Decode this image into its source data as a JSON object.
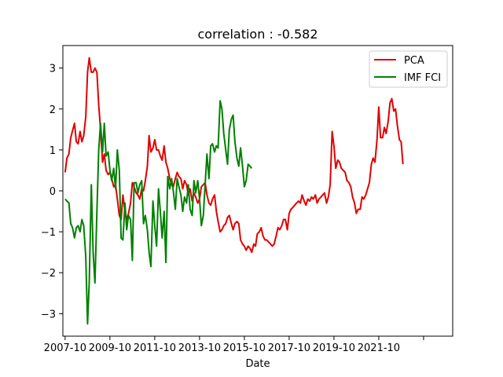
{
  "chart_data": {
    "type": "line",
    "title": "correlation : -0.582",
    "xlabel": "Date",
    "ylabel": "",
    "xlim": [
      2007.65,
      2025.05
    ],
    "ylim": [
      -3.55,
      3.55
    ],
    "grid": false,
    "legend_position": "top-right",
    "x_ticks": [
      {
        "x": 2007.75,
        "label": "2007-10"
      },
      {
        "x": 2009.75,
        "label": "2009-10"
      },
      {
        "x": 2011.75,
        "label": "2011-10"
      },
      {
        "x": 2013.75,
        "label": "2013-10"
      },
      {
        "x": 2015.75,
        "label": "2015-10"
      },
      {
        "x": 2017.75,
        "label": "2017-10"
      },
      {
        "x": 2019.75,
        "label": "2019-10"
      },
      {
        "x": 2021.75,
        "label": "2021-10"
      },
      {
        "x": 2023.75,
        "label": ""
      }
    ],
    "y_ticks": [
      -3,
      -2,
      -1,
      0,
      1,
      2,
      3
    ],
    "series": [
      {
        "name": "PCA",
        "color": "#e00000",
        "points": [
          [
            2007.75,
            0.45
          ],
          [
            2007.83,
            0.8
          ],
          [
            2007.92,
            0.9
          ],
          [
            2008.0,
            1.3
          ],
          [
            2008.17,
            1.65
          ],
          [
            2008.25,
            1.2
          ],
          [
            2008.33,
            1.15
          ],
          [
            2008.42,
            1.45
          ],
          [
            2008.5,
            1.2
          ],
          [
            2008.58,
            1.35
          ],
          [
            2008.67,
            1.8
          ],
          [
            2008.75,
            2.9
          ],
          [
            2008.83,
            3.25
          ],
          [
            2008.92,
            2.9
          ],
          [
            2009.0,
            2.9
          ],
          [
            2009.08,
            3.0
          ],
          [
            2009.17,
            2.9
          ],
          [
            2009.25,
            2.1
          ],
          [
            2009.33,
            1.5
          ],
          [
            2009.42,
            0.7
          ],
          [
            2009.5,
            0.9
          ],
          [
            2009.58,
            0.5
          ],
          [
            2009.67,
            0.4
          ],
          [
            2009.75,
            0.45
          ],
          [
            2009.83,
            0.3
          ],
          [
            2009.92,
            0.1
          ],
          [
            2010.0,
            0.15
          ],
          [
            2010.08,
            -0.2
          ],
          [
            2010.17,
            -0.6
          ],
          [
            2010.25,
            -0.7
          ],
          [
            2010.33,
            -0.1
          ],
          [
            2010.42,
            -0.5
          ],
          [
            2010.5,
            -0.7
          ],
          [
            2010.58,
            -0.55
          ],
          [
            2010.67,
            -0.3
          ],
          [
            2010.75,
            0.2
          ],
          [
            2010.83,
            0.1
          ],
          [
            2010.92,
            -0.05
          ],
          [
            2011.0,
            -0.1
          ],
          [
            2011.08,
            -0.2
          ],
          [
            2011.17,
            0.05
          ],
          [
            2011.25,
            0.0
          ],
          [
            2011.33,
            0.25
          ],
          [
            2011.42,
            0.6
          ],
          [
            2011.5,
            1.35
          ],
          [
            2011.58,
            0.95
          ],
          [
            2011.67,
            1.05
          ],
          [
            2011.75,
            1.25
          ],
          [
            2011.83,
            1.0
          ],
          [
            2011.92,
            1.0
          ],
          [
            2012.0,
            0.85
          ],
          [
            2012.08,
            0.75
          ],
          [
            2012.17,
            1.1
          ],
          [
            2012.25,
            0.7
          ],
          [
            2012.33,
            0.55
          ],
          [
            2012.42,
            0.3
          ],
          [
            2012.5,
            0.15
          ],
          [
            2012.58,
            0.1
          ],
          [
            2012.67,
            0.3
          ],
          [
            2012.75,
            0.45
          ],
          [
            2012.83,
            0.35
          ],
          [
            2012.92,
            0.3
          ],
          [
            2013.0,
            0.05
          ],
          [
            2013.08,
            0.25
          ],
          [
            2013.17,
            0.15
          ],
          [
            2013.25,
            -0.1
          ],
          [
            2013.33,
            0.05
          ],
          [
            2013.42,
            -0.25
          ],
          [
            2013.5,
            -0.05
          ],
          [
            2013.58,
            -0.15
          ],
          [
            2013.67,
            -0.3
          ],
          [
            2013.75,
            -0.2
          ],
          [
            2013.83,
            0.1
          ],
          [
            2013.92,
            0.15
          ],
          [
            2014.0,
            0.2
          ],
          [
            2014.08,
            -0.1
          ],
          [
            2014.17,
            -0.3
          ],
          [
            2014.25,
            -0.35
          ],
          [
            2014.33,
            -0.2
          ],
          [
            2014.42,
            -0.1
          ],
          [
            2014.5,
            -0.5
          ],
          [
            2014.58,
            -0.75
          ],
          [
            2014.67,
            -1.0
          ],
          [
            2014.75,
            -0.95
          ],
          [
            2014.83,
            -0.85
          ],
          [
            2014.92,
            -0.8
          ],
          [
            2015.0,
            -0.65
          ],
          [
            2015.08,
            -0.6
          ],
          [
            2015.17,
            -0.8
          ],
          [
            2015.25,
            -0.95
          ],
          [
            2015.33,
            -0.8
          ],
          [
            2015.42,
            -0.75
          ],
          [
            2015.5,
            -0.8
          ],
          [
            2015.58,
            -1.2
          ],
          [
            2015.67,
            -1.3
          ],
          [
            2015.75,
            -1.35
          ],
          [
            2015.83,
            -1.45
          ],
          [
            2015.92,
            -1.35
          ],
          [
            2016.0,
            -1.4
          ],
          [
            2016.08,
            -1.5
          ],
          [
            2016.17,
            -1.3
          ],
          [
            2016.25,
            -1.35
          ],
          [
            2016.33,
            -1.05
          ],
          [
            2016.42,
            -1.0
          ],
          [
            2016.5,
            -0.9
          ],
          [
            2016.58,
            -1.1
          ],
          [
            2016.67,
            -1.2
          ],
          [
            2016.75,
            -1.2
          ],
          [
            2016.83,
            -1.25
          ],
          [
            2016.92,
            -1.3
          ],
          [
            2017.0,
            -1.35
          ],
          [
            2017.08,
            -1.3
          ],
          [
            2017.17,
            -1.1
          ],
          [
            2017.25,
            -0.9
          ],
          [
            2017.33,
            -0.95
          ],
          [
            2017.42,
            -0.85
          ],
          [
            2017.5,
            -0.7
          ],
          [
            2017.58,
            -0.7
          ],
          [
            2017.67,
            -0.95
          ],
          [
            2017.75,
            -0.55
          ],
          [
            2017.83,
            -0.45
          ],
          [
            2017.92,
            -0.4
          ],
          [
            2018.0,
            -0.35
          ],
          [
            2018.08,
            -0.3
          ],
          [
            2018.17,
            -0.25
          ],
          [
            2018.25,
            -0.3
          ],
          [
            2018.33,
            -0.1
          ],
          [
            2018.42,
            -0.25
          ],
          [
            2018.5,
            -0.35
          ],
          [
            2018.58,
            -0.2
          ],
          [
            2018.67,
            -0.25
          ],
          [
            2018.75,
            -0.15
          ],
          [
            2018.83,
            -0.2
          ],
          [
            2018.92,
            -0.1
          ],
          [
            2019.0,
            -0.3
          ],
          [
            2019.08,
            -0.2
          ],
          [
            2019.17,
            -0.15
          ],
          [
            2019.25,
            -0.1
          ],
          [
            2019.33,
            -0.05
          ],
          [
            2019.42,
            -0.3
          ],
          [
            2019.5,
            -0.15
          ],
          [
            2019.58,
            0.15
          ],
          [
            2019.67,
            1.45
          ],
          [
            2019.75,
            1.1
          ],
          [
            2019.83,
            0.55
          ],
          [
            2019.92,
            0.75
          ],
          [
            2020.0,
            0.7
          ],
          [
            2020.08,
            0.55
          ],
          [
            2020.17,
            0.5
          ],
          [
            2020.25,
            0.45
          ],
          [
            2020.33,
            0.25
          ],
          [
            2020.42,
            0.2
          ],
          [
            2020.5,
            0.1
          ],
          [
            2020.58,
            -0.15
          ],
          [
            2020.67,
            -0.3
          ],
          [
            2020.75,
            -0.55
          ],
          [
            2020.83,
            -0.45
          ],
          [
            2020.92,
            -0.45
          ],
          [
            2021.0,
            -0.15
          ],
          [
            2021.08,
            -0.2
          ],
          [
            2021.17,
            -0.1
          ],
          [
            2021.25,
            0.05
          ],
          [
            2021.33,
            0.2
          ],
          [
            2021.42,
            0.65
          ],
          [
            2021.5,
            0.8
          ],
          [
            2021.58,
            0.7
          ],
          [
            2021.67,
            1.25
          ],
          [
            2021.75,
            2.05
          ],
          [
            2021.83,
            1.3
          ],
          [
            2021.92,
            1.3
          ],
          [
            2022.0,
            1.55
          ],
          [
            2022.08,
            1.4
          ],
          [
            2022.17,
            1.7
          ],
          [
            2022.25,
            2.15
          ],
          [
            2022.33,
            2.25
          ],
          [
            2022.42,
            1.95
          ],
          [
            2022.5,
            2.0
          ],
          [
            2022.58,
            1.6
          ],
          [
            2022.67,
            1.25
          ],
          [
            2022.75,
            1.2
          ],
          [
            2022.83,
            0.65
          ]
        ]
      },
      {
        "name": "IMF FCI",
        "color": "#008000",
        "points": [
          [
            2007.75,
            -0.2
          ],
          [
            2007.83,
            -0.25
          ],
          [
            2007.92,
            -0.3
          ],
          [
            2008.0,
            -0.8
          ],
          [
            2008.08,
            -0.9
          ],
          [
            2008.17,
            -1.15
          ],
          [
            2008.25,
            -0.9
          ],
          [
            2008.33,
            -0.85
          ],
          [
            2008.42,
            -1.0
          ],
          [
            2008.5,
            -0.7
          ],
          [
            2008.58,
            -0.85
          ],
          [
            2008.67,
            -1.6
          ],
          [
            2008.75,
            -3.25
          ],
          [
            2008.83,
            -2.2
          ],
          [
            2008.92,
            0.15
          ],
          [
            2009.0,
            -1.5
          ],
          [
            2009.08,
            -2.25
          ],
          [
            2009.17,
            -0.5
          ],
          [
            2009.25,
            1.0
          ],
          [
            2009.33,
            1.65
          ],
          [
            2009.42,
            0.95
          ],
          [
            2009.5,
            1.65
          ],
          [
            2009.58,
            0.85
          ],
          [
            2009.67,
            0.95
          ],
          [
            2009.75,
            0.5
          ],
          [
            2009.83,
            0.25
          ],
          [
            2009.92,
            0.55
          ],
          [
            2010.0,
            0.05
          ],
          [
            2010.08,
            1.0
          ],
          [
            2010.17,
            0.5
          ],
          [
            2010.25,
            -1.15
          ],
          [
            2010.33,
            -1.2
          ],
          [
            2010.42,
            -0.3
          ],
          [
            2010.5,
            -0.95
          ],
          [
            2010.58,
            -0.6
          ],
          [
            2010.67,
            -0.7
          ],
          [
            2010.75,
            -1.7
          ],
          [
            2010.83,
            0.2
          ],
          [
            2010.92,
            0.2
          ],
          [
            2011.0,
            -0.05
          ],
          [
            2011.08,
            0.15
          ],
          [
            2011.17,
            0.25
          ],
          [
            2011.25,
            -0.8
          ],
          [
            2011.33,
            -0.6
          ],
          [
            2011.42,
            -0.95
          ],
          [
            2011.5,
            -1.5
          ],
          [
            2011.58,
            -1.85
          ],
          [
            2011.67,
            -0.25
          ],
          [
            2011.75,
            -0.85
          ],
          [
            2011.83,
            -1.35
          ],
          [
            2011.92,
            0.05
          ],
          [
            2012.0,
            -0.5
          ],
          [
            2012.08,
            -1.15
          ],
          [
            2012.17,
            -0.5
          ],
          [
            2012.25,
            -1.75
          ],
          [
            2012.33,
            0.35
          ],
          [
            2012.42,
            0.05
          ],
          [
            2012.5,
            0.3
          ],
          [
            2012.58,
            0.0
          ],
          [
            2012.67,
            -0.45
          ],
          [
            2012.75,
            0.3
          ],
          [
            2012.83,
            0.1
          ],
          [
            2012.92,
            -0.1
          ],
          [
            2013.0,
            -0.5
          ],
          [
            2013.08,
            -0.15
          ],
          [
            2013.17,
            -0.3
          ],
          [
            2013.25,
            0.15
          ],
          [
            2013.33,
            -0.45
          ],
          [
            2013.42,
            -0.6
          ],
          [
            2013.5,
            0.25
          ],
          [
            2013.58,
            -0.05
          ],
          [
            2013.67,
            0.25
          ],
          [
            2013.75,
            -0.2
          ],
          [
            2013.83,
            -0.85
          ],
          [
            2013.92,
            -0.6
          ],
          [
            2014.0,
            0.15
          ],
          [
            2014.08,
            0.9
          ],
          [
            2014.17,
            0.3
          ],
          [
            2014.25,
            1.1
          ],
          [
            2014.33,
            1.15
          ],
          [
            2014.42,
            0.95
          ],
          [
            2014.5,
            1.1
          ],
          [
            2014.58,
            1.05
          ],
          [
            2014.67,
            2.2
          ],
          [
            2014.75,
            2.0
          ],
          [
            2014.83,
            1.4
          ],
          [
            2014.92,
            1.0
          ],
          [
            2015.0,
            0.65
          ],
          [
            2015.08,
            1.5
          ],
          [
            2015.17,
            1.75
          ],
          [
            2015.25,
            1.85
          ],
          [
            2015.33,
            1.2
          ],
          [
            2015.42,
            0.8
          ],
          [
            2015.5,
            0.6
          ],
          [
            2015.58,
            1.05
          ],
          [
            2015.67,
            0.6
          ],
          [
            2015.75,
            0.1
          ],
          [
            2015.83,
            0.25
          ],
          [
            2015.92,
            0.65
          ],
          [
            2016.0,
            0.6
          ],
          [
            2016.08,
            0.55
          ]
        ]
      }
    ]
  }
}
